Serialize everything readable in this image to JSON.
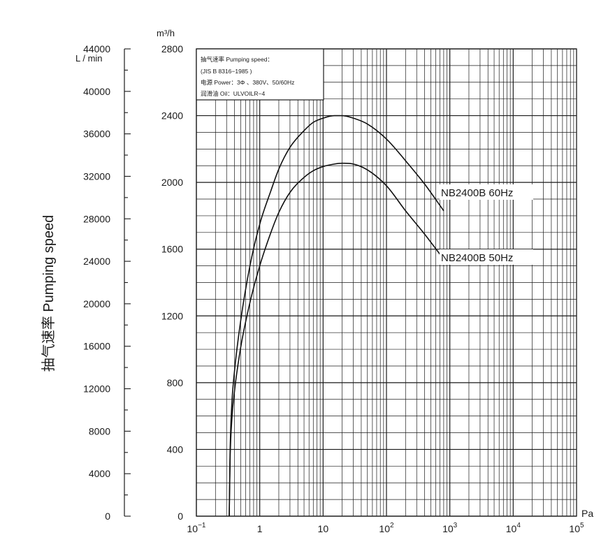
{
  "chart_data": {
    "type": "line",
    "title": "",
    "x_unit_label": "Pa",
    "y_unit_label": "m³/h",
    "y2_unit_label": "L / min",
    "ylabel": "抽气速率 Pumping speed",
    "x_scale": "log",
    "xlim": [
      0.1,
      100000
    ],
    "ylim": [
      0,
      2800
    ],
    "y2lim": [
      0,
      44000
    ],
    "x_tick_labels": [
      {
        "base": "10",
        "exp": "−1"
      },
      {
        "base": "1",
        "exp": ""
      },
      {
        "base": "10",
        "exp": ""
      },
      {
        "base": "10",
        "exp": "2"
      },
      {
        "base": "10",
        "exp": "3"
      },
      {
        "base": "10",
        "exp": "4"
      },
      {
        "base": "10",
        "exp": "5"
      }
    ],
    "y_ticks": [
      0,
      400,
      800,
      1200,
      1600,
      2000,
      2400,
      2800
    ],
    "y2_ticks": [
      0,
      4000,
      8000,
      12000,
      16000,
      20000,
      24000,
      28000,
      32000,
      36000,
      40000,
      44000
    ],
    "grid": true,
    "info_box": {
      "line1": "抽气速率 Pumping speed：",
      "line2": "(JIS B 8316−1985 )",
      "line3": "电源 Power：3Φ 、380V、50/60Hz",
      "line4": "润滑油 Oil：ULVOILR−4"
    },
    "series": [
      {
        "name": "NB2400B 60Hz",
        "x": [
          0.33,
          0.34,
          0.36,
          0.4,
          0.5,
          0.7,
          1,
          1.5,
          2,
          3,
          5,
          7,
          10,
          15,
          20,
          30,
          50,
          100,
          200,
          400,
          800
        ],
        "y": [
          0,
          370,
          650,
          870,
          1170,
          1500,
          1750,
          1950,
          2080,
          2210,
          2310,
          2360,
          2385,
          2400,
          2400,
          2385,
          2350,
          2260,
          2130,
          1990,
          1830
        ]
      },
      {
        "name": "NB2400B 50Hz",
        "x": [
          0.33,
          0.34,
          0.36,
          0.4,
          0.5,
          0.7,
          1,
          1.5,
          2,
          3,
          5,
          7,
          10,
          15,
          20,
          30,
          50,
          100,
          200,
          400,
          800
        ],
        "y": [
          0,
          330,
          560,
          750,
          1010,
          1280,
          1500,
          1700,
          1820,
          1940,
          2030,
          2070,
          2095,
          2110,
          2115,
          2110,
          2075,
          1980,
          1830,
          1690,
          1540
        ]
      }
    ]
  }
}
